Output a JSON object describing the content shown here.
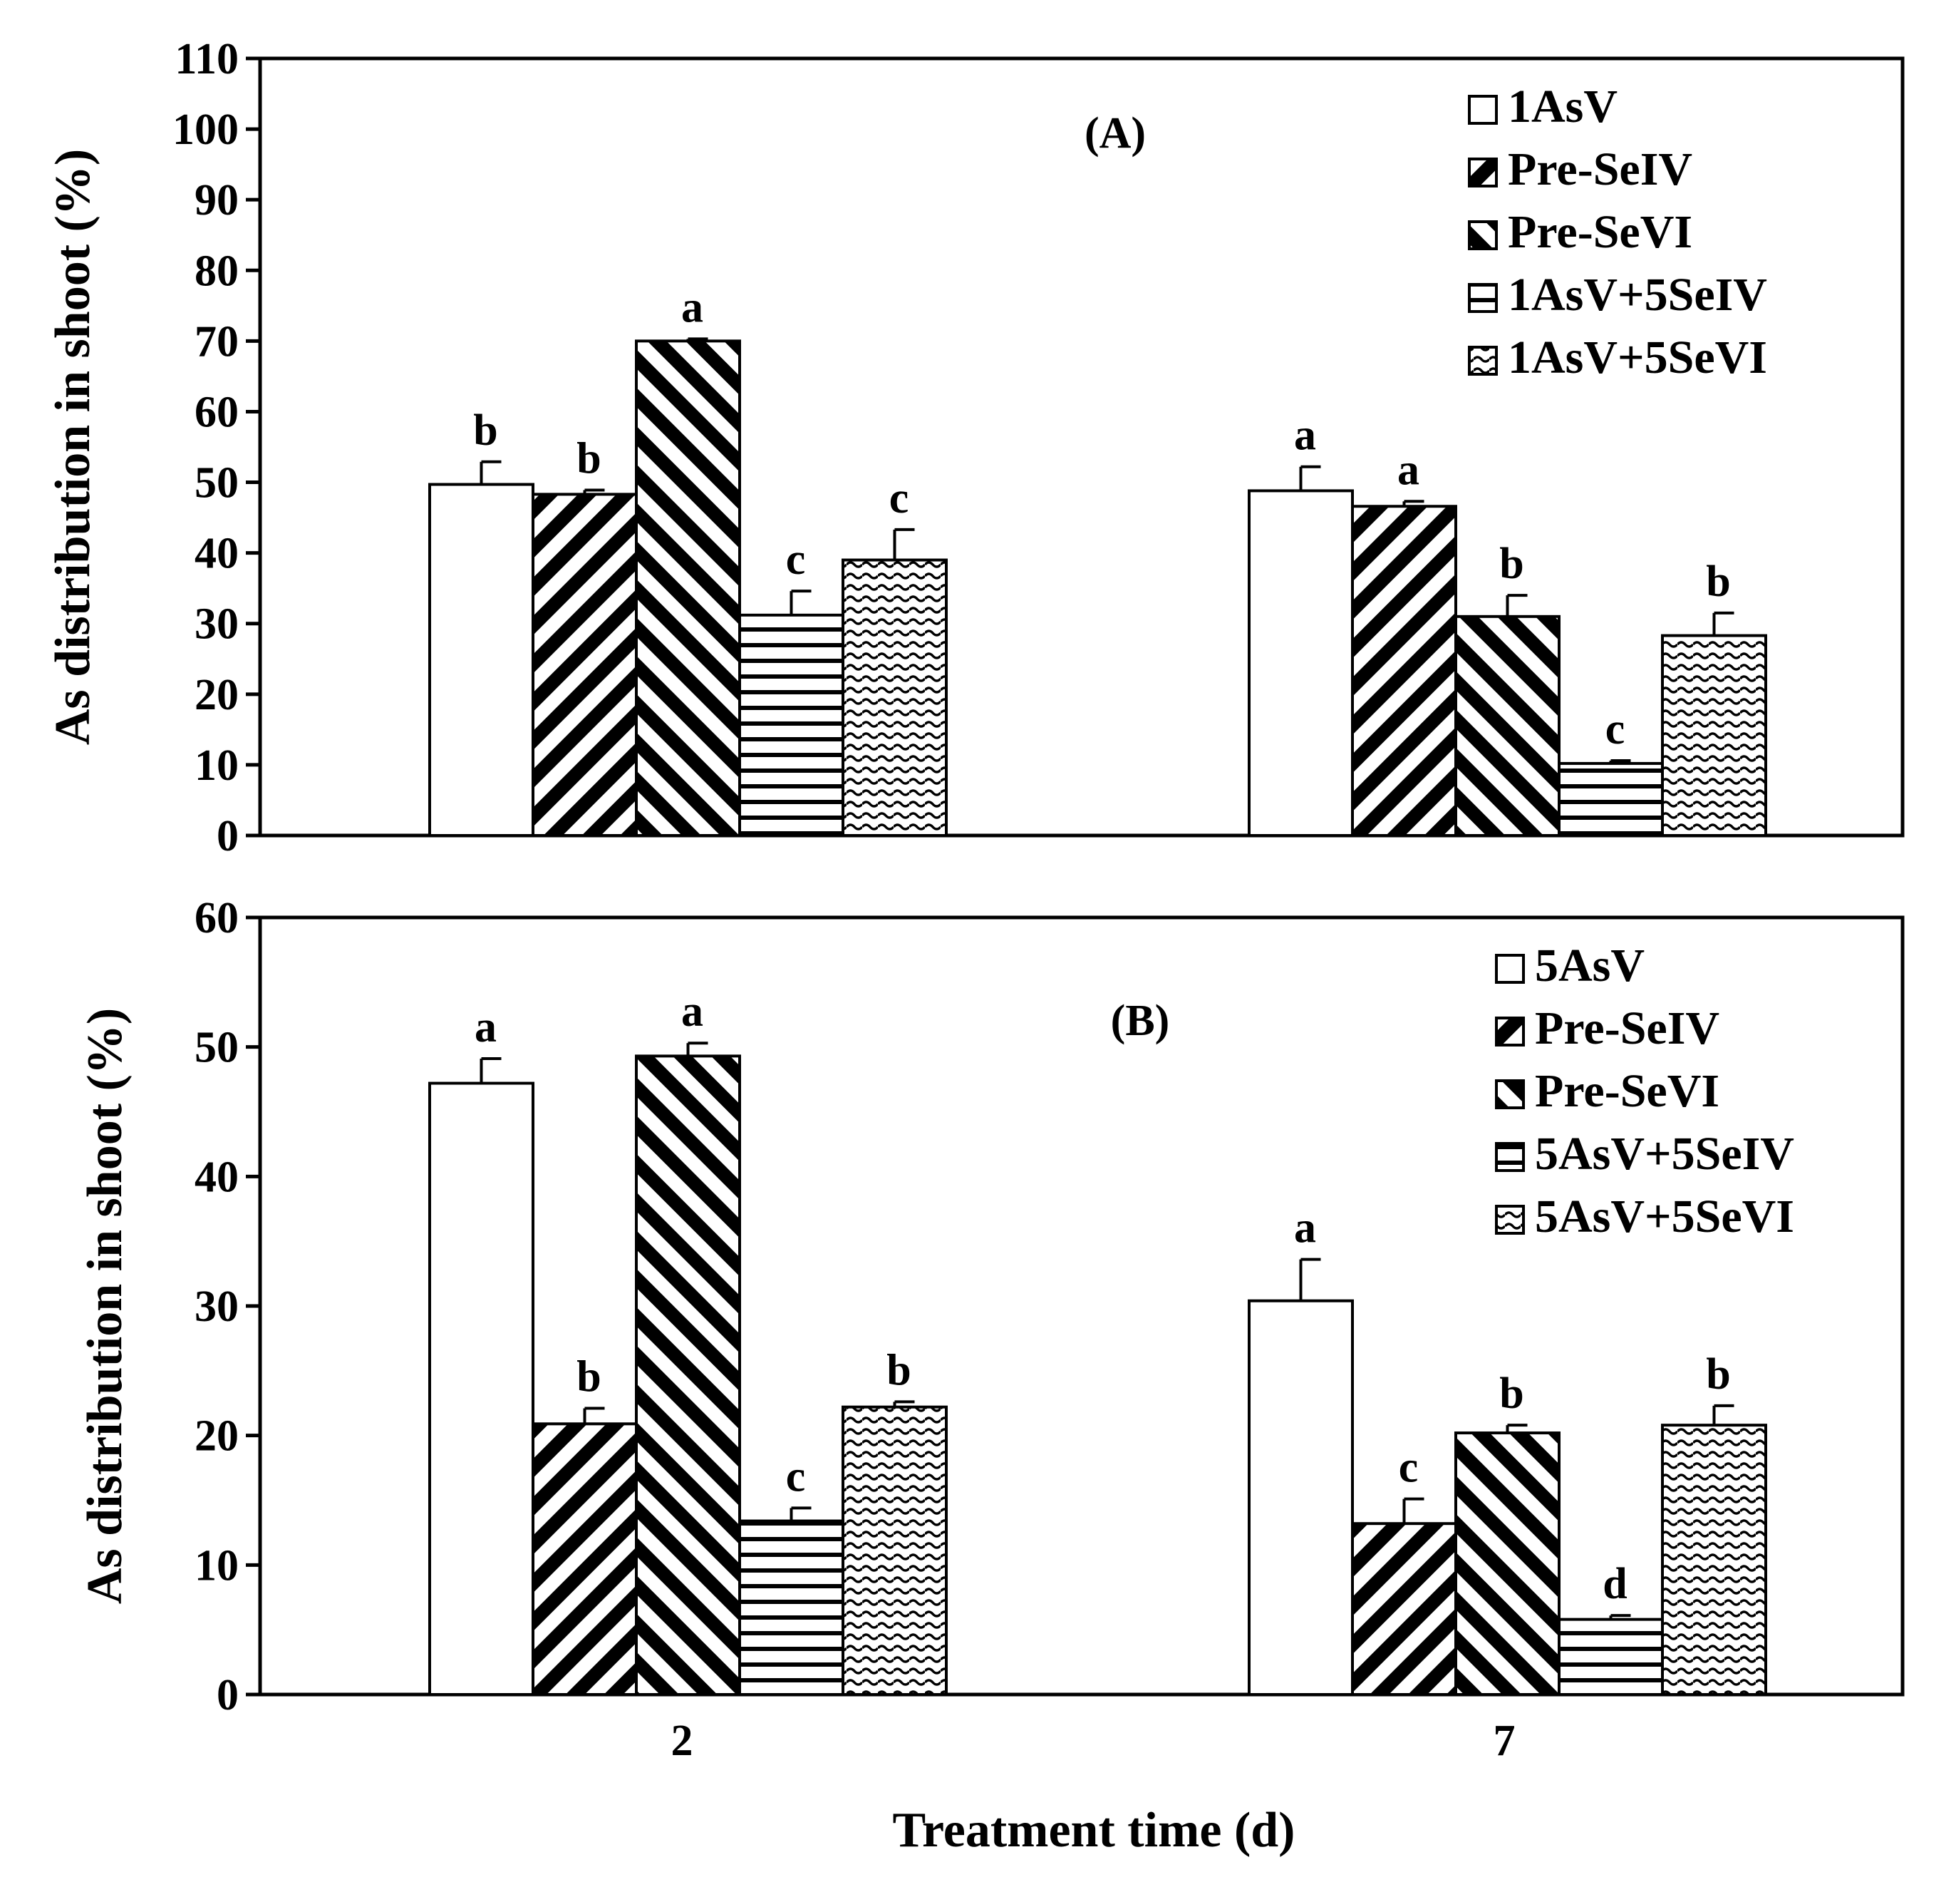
{
  "colors": {
    "ink": "#000000",
    "paper": "#ffffff"
  },
  "xlabel": "Treatment time (d)",
  "chart_data": [
    {
      "type": "bar",
      "panel": "(A)",
      "ylabel": "As distribution in shoot (%)",
      "ylim": [
        0,
        110
      ],
      "yticks": [
        0,
        10,
        20,
        30,
        40,
        50,
        60,
        70,
        80,
        90,
        100,
        110
      ],
      "categories": [
        "2",
        "7"
      ],
      "legend_position": "top-right",
      "series": [
        {
          "name": "1AsV",
          "pattern": "none",
          "values": [
            49.7,
            48.8
          ],
          "errors": [
            3.2,
            3.4
          ],
          "letters": [
            "b",
            "a"
          ]
        },
        {
          "name": "Pre-SeIV",
          "pattern": "diag-down",
          "values": [
            48.3,
            46.6
          ],
          "errors": [
            0.6,
            0.7
          ],
          "letters": [
            "b",
            "a"
          ]
        },
        {
          "name": "Pre-SeVI",
          "pattern": "diag-up",
          "values": [
            70.0,
            31.0
          ],
          "errors": [
            0.3,
            3.0
          ],
          "letters": [
            "a",
            "b"
          ]
        },
        {
          "name": "1AsV+5SeIV",
          "pattern": "horizontal",
          "values": [
            31.2,
            10.2
          ],
          "errors": [
            3.4,
            0.4
          ],
          "letters": [
            "c",
            "c"
          ]
        },
        {
          "name": "1AsV+5SeVI",
          "pattern": "wave",
          "values": [
            39.0,
            28.3
          ],
          "errors": [
            4.3,
            3.2
          ],
          "letters": [
            "c",
            "b"
          ]
        }
      ]
    },
    {
      "type": "bar",
      "panel": "(B)",
      "ylabel": "As distribution in shoot (%)",
      "ylim": [
        0,
        60
      ],
      "yticks": [
        0,
        10,
        20,
        30,
        40,
        50,
        60
      ],
      "categories": [
        "2",
        "7"
      ],
      "legend_position": "top-right",
      "series": [
        {
          "name": "5AsV",
          "pattern": "none",
          "values": [
            47.2,
            30.4
          ],
          "errors": [
            1.9,
            3.2
          ],
          "letters": [
            "a",
            "a"
          ]
        },
        {
          "name": "Pre-SeIV",
          "pattern": "diag-down",
          "values": [
            20.9,
            13.2
          ],
          "errors": [
            1.2,
            1.9
          ],
          "letters": [
            "b",
            "c"
          ]
        },
        {
          "name": "Pre-SeVI",
          "pattern": "diag-up",
          "values": [
            49.3,
            20.2
          ],
          "errors": [
            1.0,
            0.6
          ],
          "letters": [
            "a",
            "b"
          ]
        },
        {
          "name": "5AsV+5SeIV",
          "pattern": "horizontal",
          "values": [
            13.4,
            5.8
          ],
          "errors": [
            1.0,
            0.3
          ],
          "letters": [
            "c",
            "d"
          ]
        },
        {
          "name": "5AsV+5SeVI",
          "pattern": "wave",
          "values": [
            22.2,
            20.8
          ],
          "errors": [
            0.4,
            1.5
          ],
          "letters": [
            "b",
            "b"
          ]
        }
      ]
    }
  ]
}
